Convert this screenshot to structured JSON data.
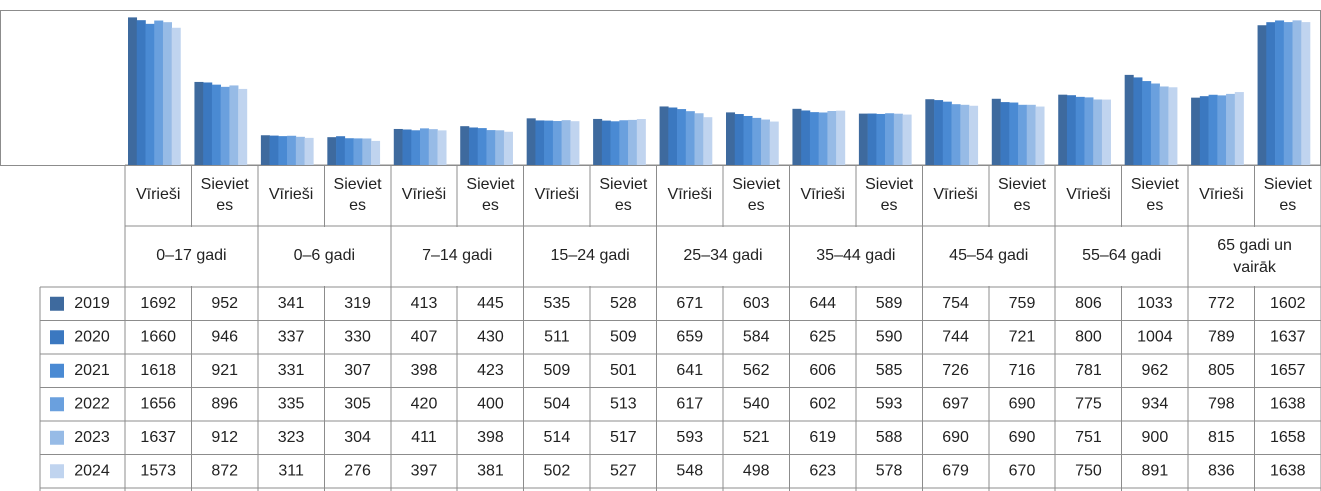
{
  "chart_data": {
    "type": "bar",
    "title": "",
    "xlabel": "",
    "ylabel": "",
    "ylim": [
      0,
      1750
    ],
    "grid": false,
    "legend": "left-of-table",
    "groups": [
      "0–17 gadi",
      "0–6 gadi",
      "7–14 gadi",
      "15–24 gadi",
      "25–34 gadi",
      "35–44 gadi",
      "45–54 gadi",
      "55–64 gadi",
      "65 gadi un vairāk"
    ],
    "subcategories": [
      "Vīrieši",
      "Sievietes"
    ],
    "subcategory_lines": [
      [
        "Vīrieši"
      ],
      [
        "Siev",
        "iet",
        "es"
      ]
    ],
    "series": [
      {
        "name": "2019",
        "color": "#3e6a9e",
        "values": [
          1692,
          952,
          341,
          319,
          413,
          445,
          535,
          528,
          671,
          603,
          644,
          589,
          754,
          759,
          806,
          1033,
          772,
          1602
        ]
      },
      {
        "name": "2020",
        "color": "#3b78c0",
        "values": [
          1660,
          946,
          337,
          330,
          407,
          430,
          511,
          509,
          659,
          584,
          625,
          590,
          744,
          721,
          800,
          1004,
          789,
          1637
        ]
      },
      {
        "name": "2021",
        "color": "#4a8ad3",
        "values": [
          1618,
          921,
          331,
          307,
          398,
          423,
          509,
          501,
          641,
          562,
          606,
          585,
          726,
          716,
          781,
          962,
          805,
          1657
        ]
      },
      {
        "name": "2022",
        "color": "#6aa0de",
        "values": [
          1656,
          896,
          335,
          305,
          420,
          400,
          504,
          513,
          617,
          540,
          602,
          593,
          697,
          690,
          775,
          934,
          798,
          1638
        ]
      },
      {
        "name": "2023",
        "color": "#97bbe6",
        "values": [
          1637,
          912,
          323,
          304,
          411,
          398,
          514,
          517,
          593,
          521,
          619,
          588,
          690,
          690,
          751,
          900,
          815,
          1658
        ]
      },
      {
        "name": "2024",
        "color": "#c0d4ef",
        "values": [
          1573,
          872,
          311,
          276,
          397,
          381,
          502,
          527,
          548,
          498,
          623,
          578,
          679,
          670,
          750,
          891,
          836,
          1638
        ]
      }
    ]
  }
}
